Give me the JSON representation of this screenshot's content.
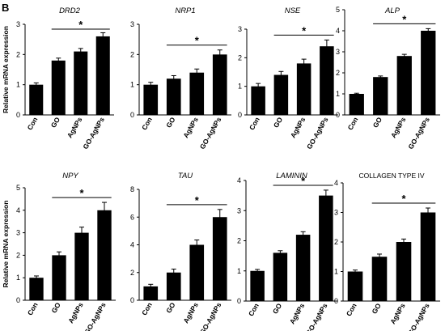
{
  "panel_label": "B",
  "shared_ylabel": "Relative mRNA expression",
  "significance_mark": "*",
  "colors": {
    "bar": "#000000",
    "axis": "#000000"
  },
  "chart_data": [
    {
      "type": "bar",
      "title": "DRD2",
      "title_italic": true,
      "categories": [
        "Con",
        "GO",
        "AgNPs",
        "GO-AgNPs"
      ],
      "values": [
        1.0,
        1.8,
        2.1,
        2.6
      ],
      "errors": [
        0.06,
        0.08,
        0.1,
        0.12
      ],
      "ylim": [
        0,
        3
      ],
      "yticks": [
        0,
        1,
        2,
        3
      ],
      "sig_span": [
        "GO",
        "GO-AgNPs"
      ],
      "sig_label": "*",
      "ylabel": "Relative mRNA expression"
    },
    {
      "type": "bar",
      "title": "NRP1",
      "title_italic": true,
      "categories": [
        "Con",
        "GO",
        "AgNPs",
        "GO-AgNPs"
      ],
      "values": [
        1.0,
        1.2,
        1.4,
        2.0
      ],
      "errors": [
        0.08,
        0.1,
        0.12,
        0.15
      ],
      "ylim": [
        0,
        3
      ],
      "yticks": [
        0,
        1,
        2,
        3
      ],
      "sig_span": [
        "GO",
        "GO-AgNPs"
      ],
      "sig_label": "*",
      "ylabel": ""
    },
    {
      "type": "bar",
      "title": "NSE",
      "title_italic": true,
      "categories": [
        "Con",
        "GO",
        "AgNPs",
        "GO-AgNPs"
      ],
      "values": [
        1.0,
        1.4,
        1.8,
        2.4
      ],
      "errors": [
        0.1,
        0.12,
        0.15,
        0.22
      ],
      "ylim": [
        0,
        3
      ],
      "yticks": [
        0,
        1,
        2,
        3
      ],
      "sig_span": [
        "GO",
        "GO-AgNPs"
      ],
      "sig_label": "*",
      "ylabel": ""
    },
    {
      "type": "bar",
      "title": "ALP",
      "title_italic": true,
      "categories": [
        "Con",
        "GO",
        "AgNPs",
        "GO-AgNPs"
      ],
      "values": [
        1.0,
        1.8,
        2.8,
        4.0
      ],
      "errors": [
        0.03,
        0.05,
        0.08,
        0.1
      ],
      "ylim": [
        0,
        5
      ],
      "yticks": [
        0,
        1,
        2,
        3,
        4,
        5
      ],
      "sig_span": [
        "GO",
        "GO-AgNPs"
      ],
      "sig_label": "*",
      "ylabel": ""
    },
    {
      "type": "bar",
      "title": "NPY",
      "title_italic": true,
      "categories": [
        "Con",
        "GO",
        "AgNPs",
        "GO-AgNPs"
      ],
      "values": [
        1.0,
        2.0,
        3.0,
        4.0
      ],
      "errors": [
        0.08,
        0.15,
        0.25,
        0.35
      ],
      "ylim": [
        0,
        5
      ],
      "yticks": [
        0,
        1,
        2,
        3,
        4,
        5
      ],
      "sig_span": [
        "GO",
        "GO-AgNPs"
      ],
      "sig_label": "*",
      "ylabel": "Relative mRNA expression"
    },
    {
      "type": "bar",
      "title": "TAU",
      "title_italic": true,
      "categories": [
        "Con",
        "GO",
        "AgNPs",
        "GO-AgNPs"
      ],
      "values": [
        1.0,
        2.0,
        4.0,
        6.0
      ],
      "errors": [
        0.15,
        0.25,
        0.35,
        0.55
      ],
      "ylim": [
        0,
        8
      ],
      "yticks": [
        0,
        2,
        4,
        6,
        8
      ],
      "sig_span": [
        "GO",
        "GO-AgNPs"
      ],
      "sig_label": "*",
      "ylabel": ""
    },
    {
      "type": "bar",
      "title": "LAMININ",
      "title_italic": true,
      "categories": [
        "Con",
        "GO",
        "AgNPs",
        "GO-AgNPs"
      ],
      "values": [
        1.0,
        1.6,
        2.2,
        3.5
      ],
      "errors": [
        0.05,
        0.07,
        0.1,
        0.18
      ],
      "ylim": [
        0,
        4
      ],
      "yticks": [
        0,
        1,
        2,
        3,
        4
      ],
      "sig_span": [
        "GO",
        "GO-AgNPs"
      ],
      "sig_label": "*",
      "ylabel": ""
    },
    {
      "type": "bar",
      "title": "COLLAGEN TYPE IV",
      "title_italic": false,
      "categories": [
        "Con",
        "GO",
        "AgNPs",
        "GO-AgNPs"
      ],
      "values": [
        1.0,
        1.5,
        2.0,
        3.0
      ],
      "errors": [
        0.05,
        0.09,
        0.1,
        0.15
      ],
      "ylim": [
        0,
        4
      ],
      "yticks": [
        0,
        1,
        2,
        3,
        4
      ],
      "sig_span": [
        "GO",
        "GO-AgNPs"
      ],
      "sig_label": "*",
      "ylabel": ""
    }
  ]
}
